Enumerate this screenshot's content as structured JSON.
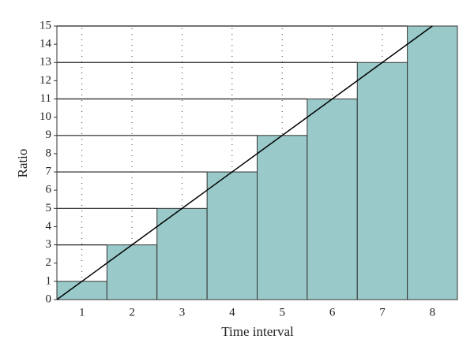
{
  "chart_data": {
    "type": "bar",
    "x_label": "Time interval",
    "y_label": "Ratio",
    "categories": [
      "1",
      "2",
      "3",
      "4",
      "5",
      "6",
      "7",
      "8"
    ],
    "values": [
      1,
      3,
      5,
      7,
      9,
      11,
      13,
      15
    ],
    "color": "#99c9c9",
    "line": {
      "x": [
        0,
        7.5
      ],
      "values": [
        0,
        15
      ],
      "color": "#000000"
    },
    "ylim": [
      0,
      15
    ],
    "yticks": [
      0,
      1,
      2,
      3,
      4,
      5,
      6,
      7,
      8,
      9,
      10,
      11,
      12,
      13,
      14,
      15
    ],
    "grid": true
  }
}
